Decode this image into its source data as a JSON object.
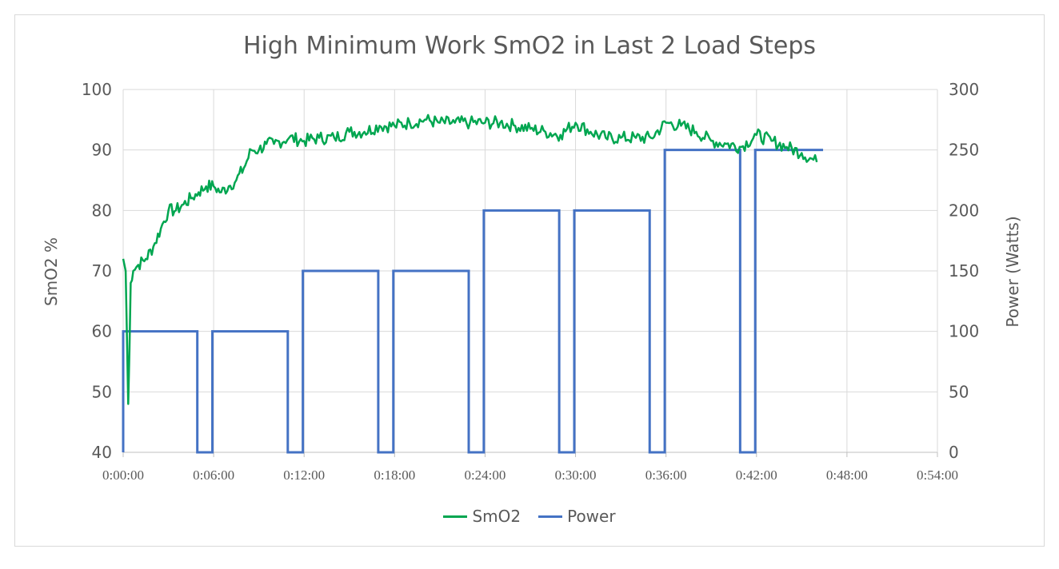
{
  "chart_data": {
    "type": "line",
    "title": "High Minimum Work SmO2 in Last 2 Load Steps",
    "ylabel_left": "SmO2 %",
    "ylabel_right": "Power (Watts)",
    "xlabel": "",
    "xlim_seconds": [
      0,
      3240
    ],
    "x_tick_labels": [
      "0:00:00",
      "0:06:00",
      "0:12:00",
      "0:18:00",
      "0:24:00",
      "0:30:00",
      "0:36:00",
      "0:42:00",
      "0:48:00",
      "0:54:00"
    ],
    "ylim_left": [
      40,
      100
    ],
    "y_left_ticks": [
      "40",
      "50",
      "60",
      "70",
      "80",
      "90",
      "100"
    ],
    "ylim_right": [
      0,
      300
    ],
    "y_right_ticks": [
      "0",
      "50",
      "100",
      "150",
      "200",
      "250",
      "300"
    ],
    "grid": true,
    "legend_position": "bottom",
    "series": [
      {
        "name": "SmO2",
        "axis": "left",
        "color": "#00a650",
        "time": [
          "0:00:00",
          "0:00:10",
          "0:00:20",
          "0:00:30",
          "0:00:40",
          "0:01:00",
          "0:01:30",
          "0:02:00",
          "0:02:30",
          "0:03:00",
          "0:03:30",
          "0:04:00",
          "0:04:30",
          "0:05:00",
          "0:05:30",
          "0:06:00",
          "0:06:30",
          "0:07:00",
          "0:07:30",
          "0:08:00",
          "0:08:30",
          "0:09:00",
          "0:09:30",
          "0:10:00",
          "0:11:00",
          "0:12:00",
          "0:13:00",
          "0:14:00",
          "0:15:00",
          "0:16:00",
          "0:17:00",
          "0:18:00",
          "0:19:00",
          "0:20:00",
          "0:21:00",
          "0:22:00",
          "0:23:00",
          "0:24:00",
          "0:25:00",
          "0:26:00",
          "0:27:00",
          "0:28:00",
          "0:29:00",
          "0:30:00",
          "0:31:00",
          "0:32:00",
          "0:33:00",
          "0:34:00",
          "0:35:00",
          "0:36:00",
          "0:37:00",
          "0:38:00",
          "0:39:00",
          "0:40:00",
          "0:41:00",
          "0:42:00",
          "0:43:00",
          "0:44:00",
          "0:45:00",
          "0:46:00"
        ],
        "values": [
          72,
          70,
          48,
          68,
          70,
          71,
          72,
          74,
          77,
          80,
          80,
          81,
          82,
          83,
          84,
          84,
          83,
          84,
          85,
          87,
          90,
          90,
          91,
          91,
          92,
          91.5,
          92,
          92,
          93,
          93,
          94,
          94,
          94.5,
          95,
          94.5,
          94.5,
          94.5,
          94.5,
          94.5,
          94,
          93.5,
          93,
          92.5,
          94.5,
          93,
          92,
          92,
          92,
          92,
          94.5,
          94,
          93,
          91.5,
          91,
          90.5,
          92.5,
          91.5,
          90.5,
          89.5,
          88
        ]
      },
      {
        "name": "Power",
        "axis": "right",
        "color": "#4472c4",
        "time": [
          "0:00:00",
          "0:04:55",
          "0:05:55",
          "0:10:55",
          "0:11:55",
          "0:16:55",
          "0:17:55",
          "0:22:55",
          "0:23:55",
          "0:28:55",
          "0:29:55",
          "0:34:55",
          "0:35:55",
          "0:40:55",
          "0:41:55",
          "0:46:25"
        ],
        "values": [
          100,
          0,
          100,
          0,
          150,
          0,
          150,
          0,
          200,
          0,
          200,
          0,
          250,
          0,
          250,
          250
        ]
      }
    ]
  }
}
